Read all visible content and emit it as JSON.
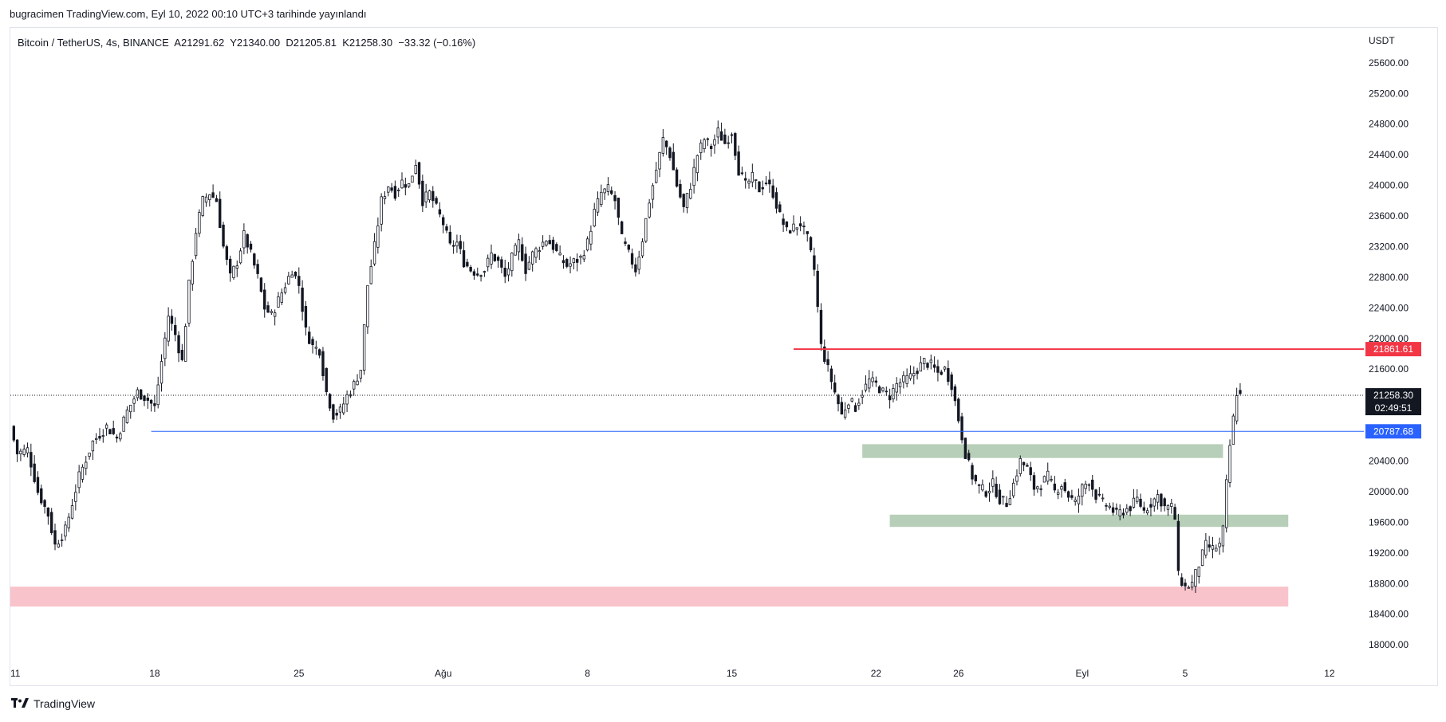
{
  "attribution": "bugracimen TradingView.com, Eyl 10, 2022 00:10 UTC+3 tarihinde yayınlandı",
  "legend": {
    "symbol": "Bitcoin / TetherUS, 4s, BINANCE",
    "open": "A21291.62",
    "high": "Y21340.00",
    "low": "D21205.81",
    "close": "K21258.30",
    "change": "−33.32 (−0.16%)"
  },
  "footer": {
    "brand": "TradingView",
    "logo_icon": "tradingview-logo-icon"
  },
  "chart_data": {
    "type": "candlestick",
    "currency_label": "USDT",
    "ylim": [
      17700,
      25900
    ],
    "y_ticks": [
      25600,
      25200,
      24800,
      24400,
      24000,
      23600,
      23200,
      22800,
      22400,
      22000,
      21600,
      21200,
      20800,
      20400,
      20000,
      19600,
      19200,
      18800,
      18400,
      18000
    ],
    "x_ticks": [
      {
        "label": "11",
        "bar": 0
      },
      {
        "label": "18",
        "bar": 42
      },
      {
        "label": "25",
        "bar": 84
      },
      {
        "label": "Ağu",
        "bar": 126
      },
      {
        "label": "8",
        "bar": 168
      },
      {
        "label": "15",
        "bar": 210
      },
      {
        "label": "22",
        "bar": 252
      },
      {
        "label": "26",
        "bar": 276
      },
      {
        "label": "Eyl",
        "bar": 312
      },
      {
        "label": "5",
        "bar": 342
      },
      {
        "label": "12",
        "bar": 384
      }
    ],
    "x_range_bars": [
      0,
      394
    ],
    "anchors": [
      [
        0,
        20850
      ],
      [
        2,
        20500
      ],
      [
        5,
        20550
      ],
      [
        8,
        20000
      ],
      [
        11,
        19700
      ],
      [
        13,
        19300
      ],
      [
        16,
        19500
      ],
      [
        18,
        19850
      ],
      [
        20,
        20200
      ],
      [
        24,
        20650
      ],
      [
        28,
        20850
      ],
      [
        31,
        20700
      ],
      [
        34,
        21050
      ],
      [
        37,
        21300
      ],
      [
        40,
        21200
      ],
      [
        42,
        21100
      ],
      [
        44,
        21700
      ],
      [
        46,
        22300
      ],
      [
        48,
        22050
      ],
      [
        50,
        21700
      ],
      [
        52,
        22700
      ],
      [
        54,
        23400
      ],
      [
        56,
        23800
      ],
      [
        58,
        23900
      ],
      [
        60,
        23800
      ],
      [
        62,
        23200
      ],
      [
        64,
        22800
      ],
      [
        66,
        23000
      ],
      [
        68,
        23350
      ],
      [
        70,
        23100
      ],
      [
        72,
        22800
      ],
      [
        74,
        22400
      ],
      [
        76,
        22300
      ],
      [
        78,
        22500
      ],
      [
        80,
        22700
      ],
      [
        82,
        22900
      ],
      [
        84,
        22700
      ],
      [
        86,
        22100
      ],
      [
        88,
        21900
      ],
      [
        90,
        21850
      ],
      [
        92,
        21300
      ],
      [
        94,
        21000
      ],
      [
        96,
        21050
      ],
      [
        98,
        21250
      ],
      [
        100,
        21400
      ],
      [
        102,
        21600
      ],
      [
        104,
        22700
      ],
      [
        106,
        23200
      ],
      [
        108,
        23800
      ],
      [
        110,
        24000
      ],
      [
        112,
        23900
      ],
      [
        114,
        24050
      ],
      [
        116,
        24000
      ],
      [
        118,
        24300
      ],
      [
        120,
        23800
      ],
      [
        122,
        23900
      ],
      [
        124,
        23700
      ],
      [
        126,
        23500
      ],
      [
        128,
        23200
      ],
      [
        130,
        23250
      ],
      [
        132,
        23000
      ],
      [
        134,
        22900
      ],
      [
        136,
        22850
      ],
      [
        138,
        22900
      ],
      [
        140,
        23100
      ],
      [
        142,
        23000
      ],
      [
        144,
        22800
      ],
      [
        146,
        23050
      ],
      [
        148,
        23250
      ],
      [
        150,
        22900
      ],
      [
        152,
        23100
      ],
      [
        154,
        23200
      ],
      [
        156,
        23300
      ],
      [
        158,
        23200
      ],
      [
        160,
        23050
      ],
      [
        162,
        22950
      ],
      [
        164,
        23000
      ],
      [
        166,
        23050
      ],
      [
        168,
        23250
      ],
      [
        170,
        23650
      ],
      [
        172,
        23900
      ],
      [
        174,
        23950
      ],
      [
        176,
        23800
      ],
      [
        178,
        23300
      ],
      [
        180,
        23100
      ],
      [
        182,
        22900
      ],
      [
        184,
        23300
      ],
      [
        186,
        23800
      ],
      [
        188,
        24200
      ],
      [
        190,
        24600
      ],
      [
        192,
        24400
      ],
      [
        194,
        24000
      ],
      [
        196,
        23700
      ],
      [
        198,
        24000
      ],
      [
        200,
        24400
      ],
      [
        202,
        24600
      ],
      [
        204,
        24500
      ],
      [
        206,
        24700
      ],
      [
        208,
        24550
      ],
      [
        210,
        24700
      ],
      [
        212,
        24200
      ],
      [
        214,
        24000
      ],
      [
        216,
        24100
      ],
      [
        218,
        23950
      ],
      [
        220,
        24050
      ],
      [
        222,
        23900
      ],
      [
        224,
        23600
      ],
      [
        226,
        23400
      ],
      [
        228,
        23450
      ],
      [
        230,
        23500
      ],
      [
        232,
        23300
      ],
      [
        234,
        22900
      ],
      [
        236,
        21900
      ],
      [
        238,
        21600
      ],
      [
        240,
        21300
      ],
      [
        242,
        21000
      ],
      [
        244,
        21200
      ],
      [
        246,
        21100
      ],
      [
        248,
        21300
      ],
      [
        250,
        21450
      ],
      [
        252,
        21400
      ],
      [
        254,
        21300
      ],
      [
        256,
        21250
      ],
      [
        258,
        21400
      ],
      [
        260,
        21450
      ],
      [
        262,
        21500
      ],
      [
        264,
        21600
      ],
      [
        266,
        21700
      ],
      [
        268,
        21650
      ],
      [
        270,
        21550
      ],
      [
        272,
        21600
      ],
      [
        274,
        21400
      ],
      [
        276,
        20950
      ],
      [
        278,
        20500
      ],
      [
        280,
        20200
      ],
      [
        282,
        20050
      ],
      [
        284,
        20000
      ],
      [
        286,
        20100
      ],
      [
        288,
        19900
      ],
      [
        290,
        19850
      ],
      [
        292,
        20100
      ],
      [
        294,
        20400
      ],
      [
        296,
        20300
      ],
      [
        298,
        20050
      ],
      [
        300,
        20100
      ],
      [
        302,
        20200
      ],
      [
        304,
        20000
      ],
      [
        306,
        20100
      ],
      [
        308,
        19950
      ],
      [
        310,
        19850
      ],
      [
        312,
        20050
      ],
      [
        314,
        20150
      ],
      [
        316,
        19950
      ],
      [
        318,
        19850
      ],
      [
        320,
        19800
      ],
      [
        322,
        19700
      ],
      [
        324,
        19750
      ],
      [
        326,
        19800
      ],
      [
        328,
        19900
      ],
      [
        330,
        19750
      ],
      [
        332,
        19850
      ],
      [
        334,
        19950
      ],
      [
        336,
        19800
      ],
      [
        338,
        19800
      ],
      [
        339,
        19650
      ],
      [
        340,
        18900
      ],
      [
        342,
        18750
      ],
      [
        344,
        18800
      ],
      [
        346,
        19050
      ],
      [
        348,
        19300
      ],
      [
        350,
        19250
      ],
      [
        352,
        19300
      ],
      [
        353,
        19500
      ],
      [
        354,
        20100
      ],
      [
        355,
        20600
      ],
      [
        356,
        20950
      ],
      [
        357,
        21300
      ],
      [
        358,
        21258
      ]
    ],
    "horizontal_lines": [
      {
        "value": 21861.61,
        "label": "21861.61",
        "color": "#f23645",
        "from_bar": 228
      },
      {
        "value": 20787.68,
        "label": "20787.68",
        "color": "#2962ff",
        "from_bar": 41
      }
    ],
    "current_price": {
      "label": "21258.30",
      "countdown": "02:49:51",
      "value": 21258.3
    },
    "zones": [
      {
        "color": "#b7cfb8",
        "from_bar": 248,
        "to_bar": 353,
        "low": 20440,
        "high": 20620
      },
      {
        "color": "#b7cfb8",
        "from_bar": 256,
        "to_bar": 372,
        "low": 19540,
        "high": 19700
      },
      {
        "color": "#f9c3cb",
        "from_bar": 0,
        "to_bar": 372,
        "low": 18500,
        "high": 18760
      }
    ],
    "colors": {
      "up": "#ffffff",
      "down": "#131722",
      "wick": "#131722",
      "grid_text": "#131722"
    }
  }
}
